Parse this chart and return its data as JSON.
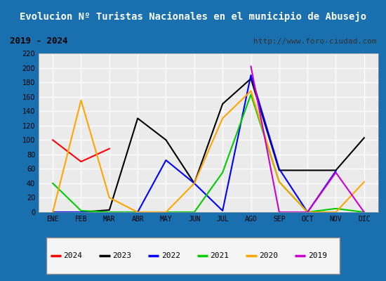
{
  "title": "Evolucion Nº Turistas Nacionales en el municipio de Abusejo",
  "subtitle_left": "2019 - 2024",
  "subtitle_right": "http://www.foro-ciudad.com",
  "months": [
    "ENE",
    "FEB",
    "MAR",
    "ABR",
    "MAY",
    "JUN",
    "JUL",
    "AGO",
    "SEP",
    "OCT",
    "NOV",
    "DIC"
  ],
  "series": {
    "2024": {
      "color": "#ff0000",
      "data": [
        100,
        70,
        88,
        null,
        null,
        null,
        null,
        null,
        null,
        null,
        null,
        null
      ]
    },
    "2023": {
      "color": "#000000",
      "data": [
        0,
        0,
        3,
        130,
        100,
        40,
        150,
        185,
        58,
        58,
        58,
        103
      ]
    },
    "2022": {
      "color": "#0000ff",
      "data": [
        0,
        0,
        0,
        0,
        72,
        40,
        2,
        190,
        60,
        0,
        57,
        null
      ]
    },
    "2021": {
      "color": "#00cc00",
      "data": [
        40,
        2,
        0,
        0,
        0,
        0,
        55,
        163,
        42,
        0,
        5,
        0
      ]
    },
    "2020": {
      "color": "#ffa500",
      "data": [
        0,
        155,
        20,
        0,
        0,
        40,
        130,
        168,
        42,
        0,
        0,
        42
      ]
    },
    "2019": {
      "color": "#cc00cc",
      "data": [
        null,
        null,
        null,
        null,
        null,
        null,
        null,
        202,
        0,
        0,
        55,
        0
      ]
    }
  },
  "ylim": [
    0,
    220
  ],
  "yticks": [
    0,
    20,
    40,
    60,
    80,
    100,
    120,
    140,
    160,
    180,
    200,
    220
  ],
  "title_bg_color": "#1a6faf",
  "title_text_color": "#ffffff",
  "subtitle_bg_color": "#e0e0e0",
  "plot_bg_color": "#ebebeb",
  "grid_color": "#ffffff",
  "outer_border_color": "#1a6faf",
  "legend_order": [
    "2024",
    "2023",
    "2022",
    "2021",
    "2020",
    "2019"
  ]
}
